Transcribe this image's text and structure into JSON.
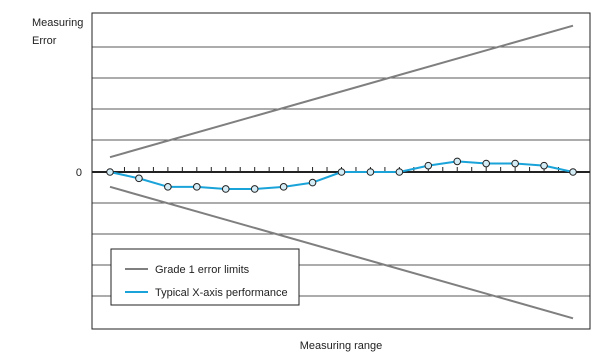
{
  "chart_data": {
    "type": "line",
    "title": "",
    "ylabel": [
      "Measuring",
      "Error"
    ],
    "xlabel": "Measuring range",
    "ytick_labels": [
      "0"
    ],
    "grid": true,
    "legend_position": "bottom-left",
    "ylim": [
      -7.5,
      7.5
    ],
    "xlim": [
      0,
      16
    ],
    "series": [
      {
        "name": "Grade 1 error limits",
        "color": "#7f7f7f",
        "style": "line",
        "lines": [
          {
            "x": [
              0,
              16
            ],
            "y": [
              0.7,
              6.9
            ]
          },
          {
            "x": [
              0,
              16
            ],
            "y": [
              -0.7,
              -6.9
            ]
          }
        ]
      },
      {
        "name": "Typical X-axis performance",
        "color": "#1aa3d9",
        "style": "line-with-markers",
        "x": [
          0,
          1,
          2,
          3,
          4,
          5,
          6,
          7,
          8,
          9,
          10,
          11,
          12,
          13,
          14,
          15,
          16
        ],
        "y": [
          0,
          -0.3,
          -0.7,
          -0.7,
          -0.8,
          -0.8,
          -0.7,
          -0.5,
          0,
          0,
          0,
          0.3,
          0.5,
          0.4,
          0.4,
          0.3,
          0
        ]
      }
    ]
  }
}
